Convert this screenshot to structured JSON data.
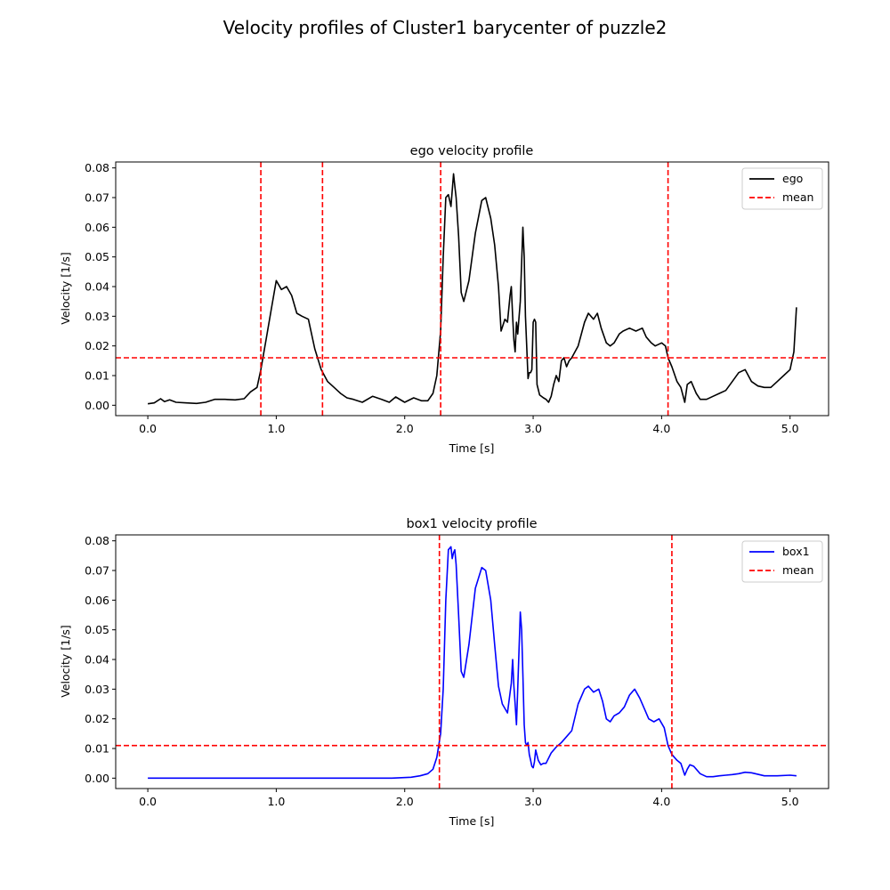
{
  "figure": {
    "title": "Velocity profiles of  Cluster1 barycenter of puzzle2"
  },
  "chart_data": [
    {
      "type": "line",
      "title": "ego velocity profile",
      "xlabel": "Time [s]",
      "ylabel": "Velocity [1/s]",
      "xlim": [
        -0.25,
        5.3
      ],
      "ylim": [
        -0.0035,
        0.082
      ],
      "xticks": [
        0.0,
        1.0,
        2.0,
        3.0,
        4.0,
        5.0
      ],
      "xtick_labels": [
        "0.0",
        "1.0",
        "2.0",
        "3.0",
        "4.0",
        "5.0"
      ],
      "yticks": [
        0.0,
        0.01,
        0.02,
        0.03,
        0.04,
        0.05,
        0.06,
        0.07,
        0.08
      ],
      "ytick_labels": [
        "0.00",
        "0.01",
        "0.02",
        "0.03",
        "0.04",
        "0.05",
        "0.06",
        "0.07",
        "0.08"
      ],
      "grid": false,
      "legend_position": "top-right",
      "series": [
        {
          "name": "ego",
          "color": "#000000",
          "x": [
            0.0,
            0.05,
            0.1,
            0.13,
            0.17,
            0.22,
            0.3,
            0.38,
            0.45,
            0.52,
            0.6,
            0.68,
            0.75,
            0.8,
            0.85,
            0.88,
            0.92,
            0.96,
            1.0,
            1.04,
            1.08,
            1.12,
            1.16,
            1.2,
            1.25,
            1.3,
            1.35,
            1.4,
            1.45,
            1.5,
            1.55,
            1.6,
            1.67,
            1.75,
            1.82,
            1.88,
            1.93,
            2.0,
            2.07,
            2.13,
            2.18,
            2.22,
            2.25,
            2.28,
            2.3,
            2.32,
            2.34,
            2.36,
            2.38,
            2.39,
            2.4,
            2.42,
            2.44,
            2.46,
            2.5,
            2.55,
            2.6,
            2.63,
            2.67,
            2.7,
            2.73,
            2.75,
            2.78,
            2.8,
            2.82,
            2.83,
            2.84,
            2.85,
            2.86,
            2.87,
            2.88,
            2.9,
            2.92,
            2.93,
            2.94,
            2.95,
            2.96,
            2.97,
            2.98,
            2.99,
            3.0,
            3.01,
            3.02,
            3.03,
            3.05,
            3.08,
            3.1,
            3.12,
            3.14,
            3.16,
            3.18,
            3.2,
            3.22,
            3.24,
            3.26,
            3.28,
            3.3,
            3.35,
            3.4,
            3.43,
            3.47,
            3.5,
            3.53,
            3.57,
            3.6,
            3.63,
            3.67,
            3.7,
            3.75,
            3.8,
            3.85,
            3.88,
            3.92,
            3.95,
            4.0,
            4.03,
            4.05,
            4.08,
            4.12,
            4.15,
            4.18,
            4.2,
            4.23,
            4.27,
            4.3,
            4.35,
            4.4,
            4.45,
            4.5,
            4.55,
            4.6,
            4.65,
            4.7,
            4.75,
            4.8,
            4.85,
            4.9,
            4.95,
            5.0,
            5.03,
            5.05
          ],
          "y": [
            0.0005,
            0.0008,
            0.0022,
            0.0012,
            0.0018,
            0.001,
            0.0008,
            0.0006,
            0.001,
            0.002,
            0.002,
            0.0018,
            0.0022,
            0.0045,
            0.006,
            0.012,
            0.022,
            0.032,
            0.042,
            0.039,
            0.04,
            0.037,
            0.031,
            0.03,
            0.029,
            0.019,
            0.012,
            0.008,
            0.006,
            0.004,
            0.0025,
            0.002,
            0.001,
            0.003,
            0.002,
            0.001,
            0.0028,
            0.001,
            0.0025,
            0.0015,
            0.0015,
            0.004,
            0.01,
            0.025,
            0.05,
            0.07,
            0.071,
            0.067,
            0.078,
            0.074,
            0.07,
            0.057,
            0.038,
            0.035,
            0.042,
            0.058,
            0.069,
            0.07,
            0.063,
            0.054,
            0.04,
            0.025,
            0.029,
            0.028,
            0.037,
            0.04,
            0.03,
            0.022,
            0.018,
            0.028,
            0.024,
            0.035,
            0.06,
            0.05,
            0.03,
            0.02,
            0.009,
            0.011,
            0.011,
            0.012,
            0.028,
            0.029,
            0.028,
            0.007,
            0.0035,
            0.0025,
            0.002,
            0.001,
            0.003,
            0.007,
            0.01,
            0.008,
            0.015,
            0.016,
            0.013,
            0.015,
            0.016,
            0.02,
            0.028,
            0.031,
            0.029,
            0.031,
            0.026,
            0.021,
            0.02,
            0.021,
            0.024,
            0.025,
            0.026,
            0.025,
            0.026,
            0.023,
            0.021,
            0.02,
            0.021,
            0.02,
            0.016,
            0.013,
            0.008,
            0.006,
            0.001,
            0.007,
            0.008,
            0.004,
            0.002,
            0.002,
            0.003,
            0.004,
            0.005,
            0.008,
            0.011,
            0.012,
            0.008,
            0.0065,
            0.006,
            0.006,
            0.008,
            0.01,
            0.012,
            0.018,
            0.033
          ]
        },
        {
          "name": "mean",
          "color": "#ff0000",
          "style": "dashed",
          "hline": 0.016,
          "vlines": [
            0.88,
            1.36,
            2.28,
            4.05
          ]
        }
      ]
    },
    {
      "type": "line",
      "title": "box1 velocity profile",
      "xlabel": "Time [s]",
      "ylabel": "Velocity [1/s]",
      "xlim": [
        -0.25,
        5.3
      ],
      "ylim": [
        -0.0035,
        0.082
      ],
      "xticks": [
        0.0,
        1.0,
        2.0,
        3.0,
        4.0,
        5.0
      ],
      "xtick_labels": [
        "0.0",
        "1.0",
        "2.0",
        "3.0",
        "4.0",
        "5.0"
      ],
      "yticks": [
        0.0,
        0.01,
        0.02,
        0.03,
        0.04,
        0.05,
        0.06,
        0.07,
        0.08
      ],
      "ytick_labels": [
        "0.00",
        "0.01",
        "0.02",
        "0.03",
        "0.04",
        "0.05",
        "0.06",
        "0.07",
        "0.08"
      ],
      "grid": false,
      "legend_position": "top-right",
      "series": [
        {
          "name": "box1",
          "color": "#0000ff",
          "x": [
            0.0,
            0.5,
            1.0,
            1.5,
            1.9,
            2.05,
            2.12,
            2.18,
            2.22,
            2.25,
            2.28,
            2.3,
            2.32,
            2.34,
            2.36,
            2.37,
            2.38,
            2.39,
            2.4,
            2.42,
            2.44,
            2.46,
            2.5,
            2.55,
            2.6,
            2.63,
            2.67,
            2.7,
            2.73,
            2.76,
            2.8,
            2.83,
            2.84,
            2.85,
            2.86,
            2.87,
            2.88,
            2.9,
            2.91,
            2.92,
            2.93,
            2.94,
            2.95,
            2.96,
            2.97,
            2.98,
            2.99,
            3.0,
            3.01,
            3.02,
            3.04,
            3.06,
            3.08,
            3.1,
            3.14,
            3.18,
            3.22,
            3.26,
            3.3,
            3.35,
            3.4,
            3.43,
            3.47,
            3.51,
            3.54,
            3.57,
            3.6,
            3.63,
            3.67,
            3.71,
            3.75,
            3.79,
            3.83,
            3.87,
            3.9,
            3.94,
            3.98,
            4.02,
            4.05,
            4.08,
            4.12,
            4.15,
            4.18,
            4.2,
            4.22,
            4.25,
            4.3,
            4.35,
            4.4,
            4.45,
            4.5,
            4.55,
            4.6,
            4.65,
            4.7,
            4.8,
            4.9,
            5.0,
            5.05
          ],
          "y": [
            0.0,
            0.0,
            0.0,
            0.0,
            0.0,
            0.0003,
            0.0008,
            0.0015,
            0.003,
            0.007,
            0.015,
            0.03,
            0.06,
            0.077,
            0.078,
            0.074,
            0.076,
            0.077,
            0.072,
            0.055,
            0.036,
            0.034,
            0.045,
            0.064,
            0.071,
            0.07,
            0.06,
            0.045,
            0.031,
            0.025,
            0.022,
            0.032,
            0.04,
            0.031,
            0.025,
            0.018,
            0.03,
            0.056,
            0.05,
            0.035,
            0.018,
            0.012,
            0.011,
            0.012,
            0.008,
            0.006,
            0.004,
            0.0035,
            0.0055,
            0.0095,
            0.006,
            0.0045,
            0.005,
            0.005,
            0.0085,
            0.0105,
            0.012,
            0.014,
            0.016,
            0.025,
            0.03,
            0.031,
            0.029,
            0.03,
            0.026,
            0.02,
            0.019,
            0.021,
            0.022,
            0.024,
            0.028,
            0.03,
            0.027,
            0.023,
            0.02,
            0.019,
            0.02,
            0.017,
            0.011,
            0.008,
            0.006,
            0.005,
            0.001,
            0.003,
            0.0045,
            0.004,
            0.0015,
            0.0005,
            0.0005,
            0.0008,
            0.001,
            0.0012,
            0.0015,
            0.002,
            0.0018,
            0.0008,
            0.0008,
            0.001,
            0.0008
          ]
        },
        {
          "name": "mean",
          "color": "#ff0000",
          "style": "dashed",
          "hline": 0.011,
          "vlines": [
            2.27,
            4.08
          ]
        }
      ]
    }
  ]
}
